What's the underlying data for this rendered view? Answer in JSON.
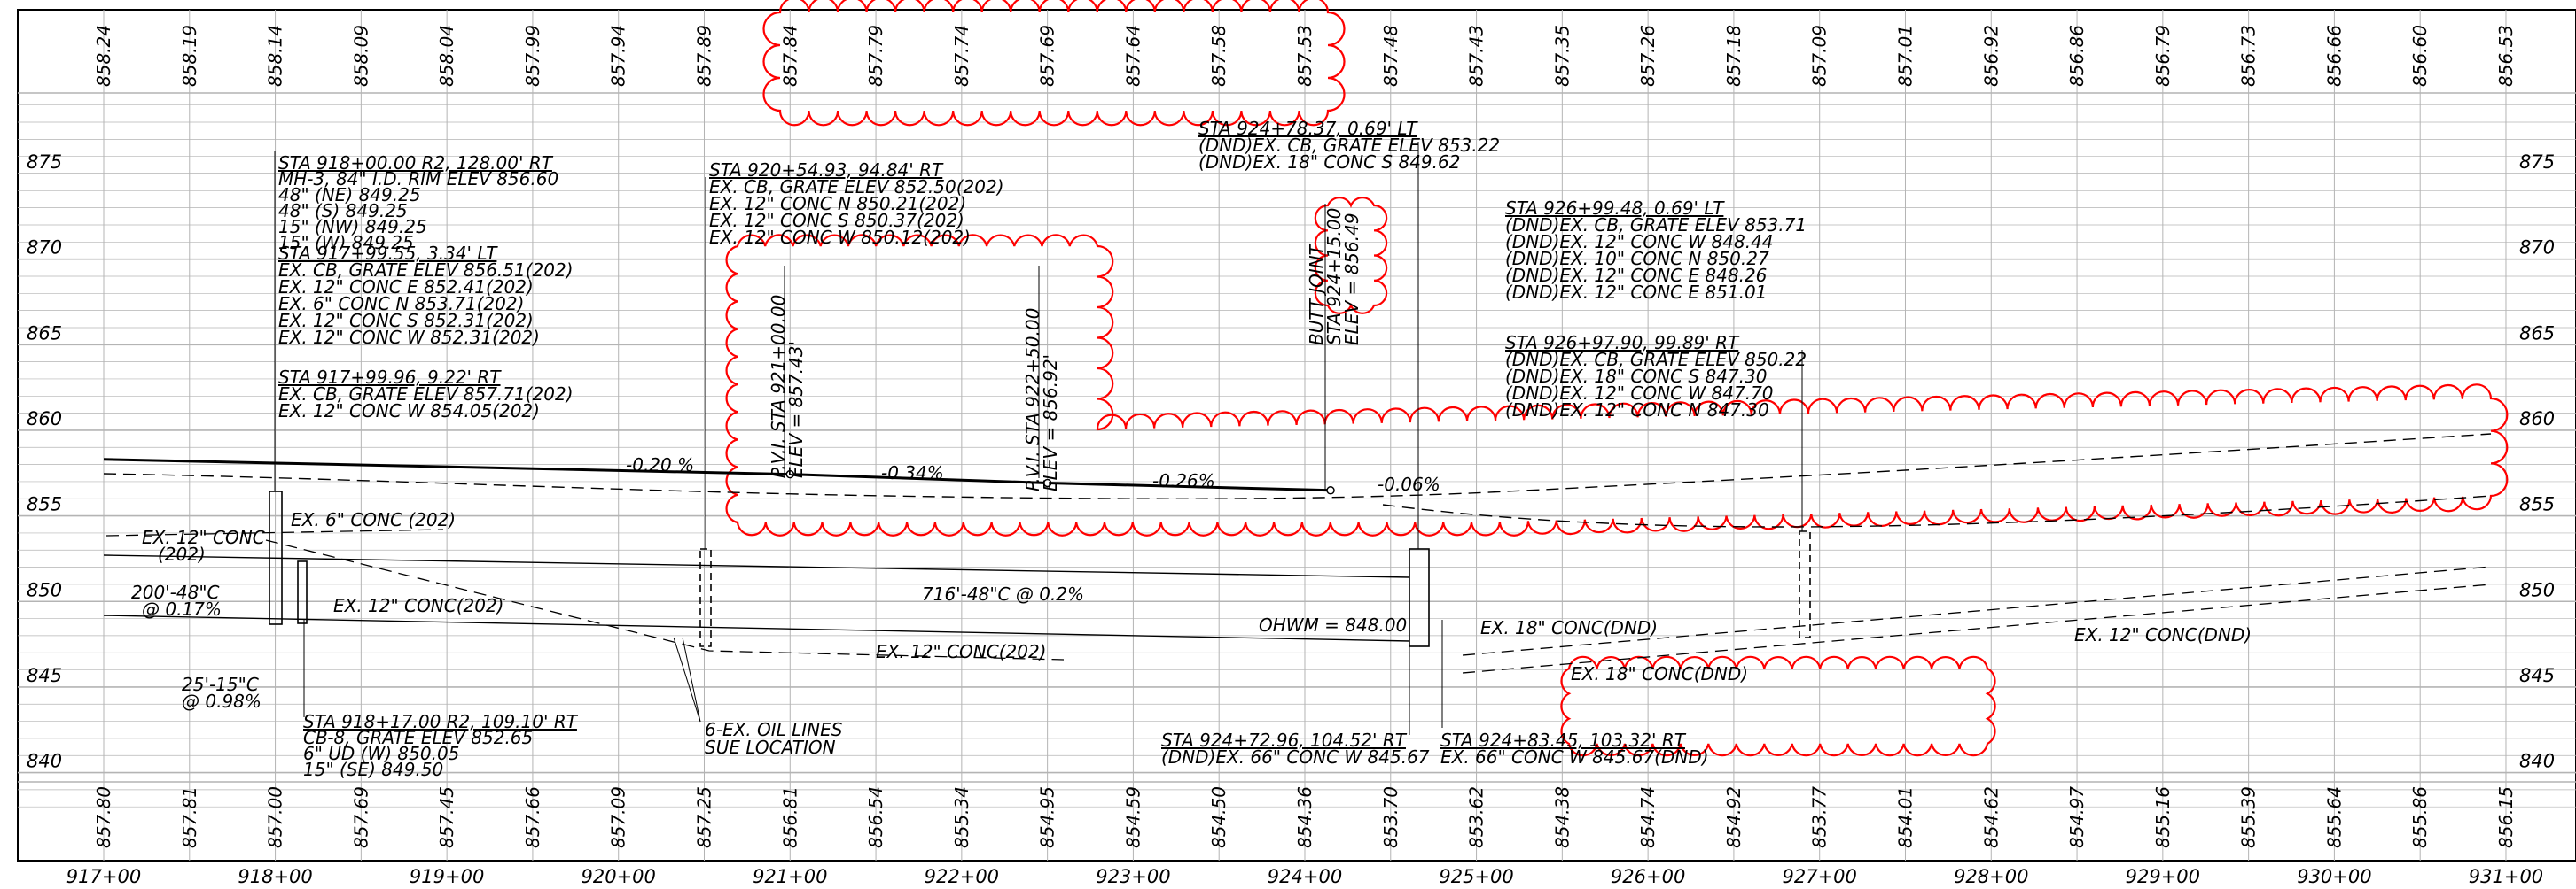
{
  "sheet": {
    "colors": {
      "ink": "#000000",
      "grid": "#b4b4b4",
      "revision_cloud": "#ff0000",
      "background": "#ffffff"
    }
  },
  "chart_data": {
    "type": "profile",
    "station_range": [
      "917+00",
      "931+00"
    ],
    "elevation_range": [
      838,
      880
    ],
    "grid": true,
    "elevation_labels": [
      "875",
      "870",
      "865",
      "860",
      "855",
      "850",
      "845",
      "840"
    ],
    "station_labels": [
      "917+00",
      "918+00",
      "919+00",
      "920+00",
      "921+00",
      "922+00",
      "923+00",
      "924+00",
      "925+00",
      "926+00",
      "927+00",
      "928+00",
      "929+00",
      "930+00",
      "931+00"
    ],
    "top_elevations": [
      "858.24",
      "858.19",
      "858.14",
      "858.09",
      "858.04",
      "857.99",
      "857.94",
      "857.89",
      "857.84",
      "857.79",
      "857.74",
      "857.69",
      "857.64",
      "857.58",
      "857.53",
      "857.48",
      "857.43",
      "857.35",
      "857.26",
      "857.18",
      "857.09",
      "857.01",
      "856.92",
      "856.86",
      "856.79",
      "856.73",
      "856.66",
      "856.60",
      "856.53"
    ],
    "bottom_elevations": [
      "857.80",
      "857.81",
      "857.00",
      "857.69",
      "857.45",
      "857.66",
      "857.09",
      "857.25",
      "856.81",
      "856.54",
      "855.34",
      "854.95",
      "854.59",
      "854.50",
      "854.36",
      "853.70",
      "853.62",
      "854.38",
      "854.74",
      "854.92",
      "853.77",
      "854.01",
      "854.62",
      "854.97",
      "855.16",
      "855.39",
      "855.64",
      "855.86",
      "856.15"
    ],
    "proposed_profile": [
      {
        "station": 917.0,
        "elev": 858.3
      },
      {
        "station": 921.0,
        "elev": 857.43
      },
      {
        "station": 922.5,
        "elev": 856.92
      },
      {
        "station": 924.15,
        "elev": 856.49
      }
    ],
    "grades": [
      "-0.20 %",
      "-0.34%",
      "-0.26%",
      "-0.06%"
    ],
    "pvi_labels": [
      "P.V.I. STA 921+00.00",
      "ELEV = 857.43'",
      "P.V.I. STA 922+50.00",
      "ELEV = 856.92'"
    ],
    "butt_joint": [
      "BUTT JOINT",
      "STA 924+15.00",
      "ELEV = 856.49"
    ],
    "callouts": {
      "mh3": [
        "STA 918+00.00 R2, 128.00' RT",
        "MH-3, 84\" I.D. RIM ELEV 856.60",
        "48\" (NE) 849.25",
        "48\" (S) 849.25",
        "15\" (NW) 849.25",
        "15\" (W) 849.25"
      ],
      "cb_917_99_55": [
        "STA 917+99.55, 3.34' LT",
        "EX. CB, GRATE ELEV 856.51(202)",
        "EX. 12\" CONC E 852.41(202)",
        "EX. 6\" CONC N 853.71(202)",
        "EX. 12\" CONC S 852.31(202)",
        "EX. 12\" CONC W 852.31(202)"
      ],
      "cb_917_99_96": [
        "STA 917+99.96, 9.22' RT",
        "EX. CB, GRATE ELEV 857.71(202)",
        "EX. 12\" CONC W 854.05(202)"
      ],
      "cb_920_54": [
        "STA 920+54.93, 94.84' RT",
        "EX. CB, GRATE ELEV 852.50(202)",
        "EX. 12\" CONC N 850.21(202)",
        "EX. 12\" CONC S 850.37(202)",
        "EX. 12\" CONC W 850.12(202)"
      ],
      "cb_924_78": [
        "STA 924+78.37, 0.69' LT",
        "(DND)EX. CB, GRATE ELEV 853.22",
        "(DND)EX. 18\" CONC S 849.62"
      ],
      "cb_926_99": [
        "STA 926+99.48, 0.69' LT",
        "(DND)EX. CB, GRATE ELEV 853.71",
        "(DND)EX. 12\" CONC W 848.44",
        "(DND)EX. 10\" CONC N 850.27",
        "(DND)EX. 12\" CONC E 848.26",
        "(DND)EX. 12\" CONC E 851.01"
      ],
      "cb_926_97": [
        "STA 926+97.90, 99.89' RT",
        "(DND)EX. CB, GRATE ELEV 850.22",
        "(DND)EX. 18\" CONC S 847.30",
        "(DND)EX. 12\" CONC W 847.70",
        "(DND)EX. 12\" CONC N 847.30"
      ],
      "cb8": [
        "STA 918+17.00 R2, 109.10' RT",
        "CB-8, GRATE ELEV 852.65",
        "6\" UD (W) 850.05",
        "15\" (SE) 849.50"
      ],
      "st_924_72": [
        "STA 924+72.96, 104.52' RT",
        "(DND)EX. 66\" CONC W 845.67"
      ],
      "st_924_83": [
        "STA 924+83.45, 103.32' RT",
        "EX. 66\" CONC W 845.67(DND)"
      ]
    },
    "pipe_labels": {
      "ex12_left": "EX. 12\" CONC",
      "ex202": "(202)",
      "ex6": "EX. 6\" CONC (202)",
      "ex12_mid": "EX. 12\" CONC(202)",
      "ex12_low": "EX. 12\" CONC(202)",
      "p200": "200'-48\"C",
      "p200s": "@ 0.17%",
      "p25": "25'-15\"C",
      "p25s": "@ 0.98%",
      "p716": "716'-48\"C @ 0.2%",
      "ohwm": "OHWM = 848.00",
      "ex18": "EX. 18\" CONC(DND)",
      "ex18b": "EX. 18\" CONC(DND)",
      "ex12r": "EX. 12\" CONC(DND)",
      "oil1": "6-EX. OIL LINES",
      "oil2": "SUE LOCATION"
    }
  }
}
